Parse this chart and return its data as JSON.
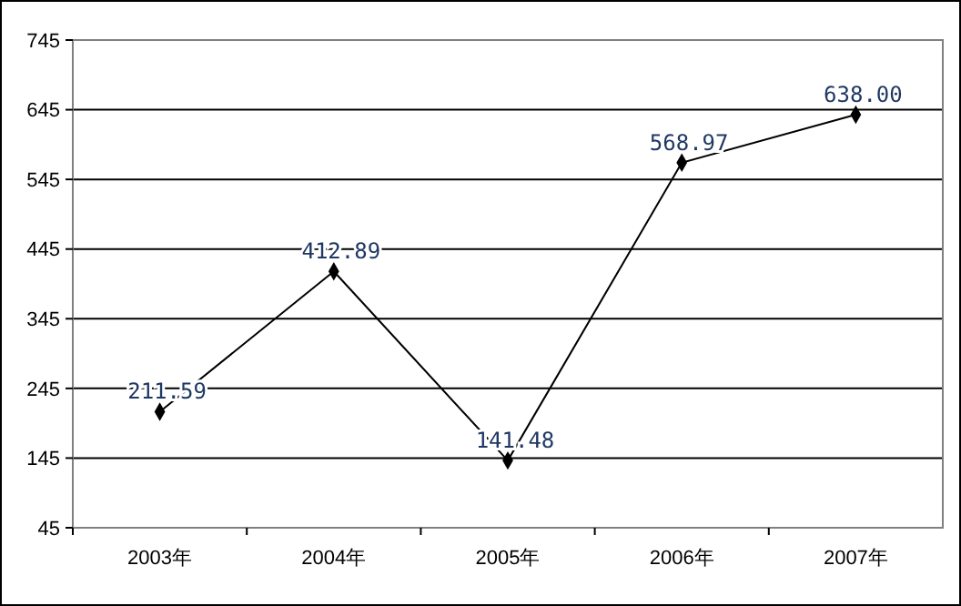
{
  "chart_data": {
    "type": "line",
    "categories": [
      "2003年",
      "2004年",
      "2005年",
      "2006年",
      "2007年"
    ],
    "series": [
      {
        "color": "#000000",
        "values": [
          211.59,
          412.89,
          141.48,
          568.97,
          638.0
        ],
        "value_labels": [
          "211.59",
          "412.89",
          "141.48",
          "568.97",
          "638.00"
        ]
      }
    ],
    "ylim": [
      45,
      745
    ],
    "yticks": [
      45,
      145,
      245,
      345,
      445,
      545,
      645,
      745
    ],
    "grid": "y",
    "marker": "diamond",
    "line_style": "solid"
  }
}
